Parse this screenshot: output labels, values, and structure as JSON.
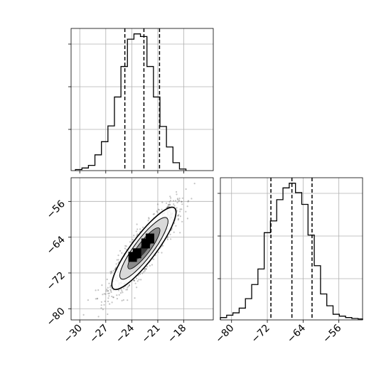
{
  "chart_data": {
    "type": "corner",
    "parameters": [
      {
        "axis": "x",
        "range": [
          -31,
          -14.6
        ],
        "ticks": [
          -30,
          -27,
          -24,
          -21,
          -18
        ],
        "tick_labels": [
          "−30",
          "−27",
          "−24",
          "−21",
          "−18"
        ],
        "quantiles": [
          -24.8,
          -22.6,
          -20.8
        ],
        "histogram": {
          "bin_edges": [
            -30.5,
            -29.75,
            -29.0,
            -28.25,
            -27.5,
            -26.75,
            -26.0,
            -25.25,
            -24.5,
            -23.75,
            -23.0,
            -22.25,
            -21.5,
            -20.75,
            -20.0,
            -19.25,
            -18.5,
            -17.75
          ],
          "heights": [
            2,
            5,
            10,
            30,
            55,
            85,
            140,
            198,
            250,
            260,
            255,
            198,
            140,
            84,
            45,
            15,
            3
          ]
        }
      },
      {
        "axis": "y",
        "range": [
          -82.5,
          -50.7
        ],
        "ticks": [
          -80,
          -72,
          -64,
          -56
        ],
        "tick_labels": [
          "−80",
          "−72",
          "−64",
          "−56"
        ],
        "quantiles": [
          -71.2,
          -66.5,
          -62.0
        ],
        "histogram": {
          "bin_edges": [
            -82.5,
            -81.1,
            -79.7,
            -78.3,
            -76.9,
            -75.5,
            -74.1,
            -72.7,
            -71.3,
            -69.9,
            -68.5,
            -67.1,
            -65.7,
            -64.3,
            -62.9,
            -61.5,
            -60.1,
            -58.7,
            -57.3,
            -55.9,
            -54.5,
            -53.1,
            -51.7,
            -50.7
          ],
          "heights": [
            5,
            10,
            15,
            25,
            45,
            75,
            108,
            185,
            210,
            255,
            280,
            290,
            270,
            245,
            180,
            115,
            55,
            30,
            12,
            8,
            5,
            3,
            2
          ]
        }
      }
    ],
    "scatter": {
      "center": [
        -22.6,
        -66.5
      ],
      "sigma": [
        1.85,
        4.6
      ],
      "correlation": 0.88,
      "n_points": 1500
    },
    "contour_levels": 4,
    "grid": true
  }
}
